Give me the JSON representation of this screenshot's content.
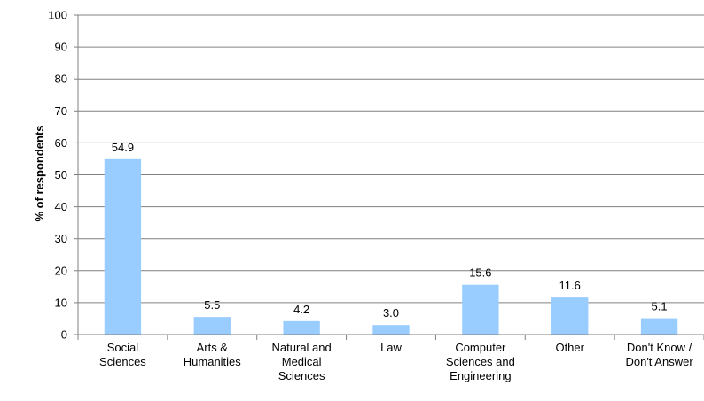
{
  "chart_data": {
    "type": "bar",
    "categories": [
      [
        "Social",
        "Sciences"
      ],
      [
        "Arts &",
        "Humanities"
      ],
      [
        "Natural and",
        "Medical",
        "Sciences"
      ],
      [
        "Law"
      ],
      [
        "Computer",
        "Sciences and",
        "Engineering"
      ],
      [
        "Other"
      ],
      [
        "Don't Know /",
        "Don't Answer"
      ]
    ],
    "values": [
      54.9,
      5.5,
      4.2,
      3.0,
      15.6,
      11.6,
      5.1
    ],
    "value_labels": [
      "54.9",
      "5.5",
      "4.2",
      "3.0",
      "15.6",
      "11.6",
      "5.1"
    ],
    "ylabel": "% of respondents",
    "ylim": [
      0,
      100
    ],
    "yticks": [
      0,
      10,
      20,
      30,
      40,
      50,
      60,
      70,
      80,
      90,
      100
    ],
    "grid": true,
    "bar_color": "#99ccff",
    "grid_color": "#808080"
  }
}
